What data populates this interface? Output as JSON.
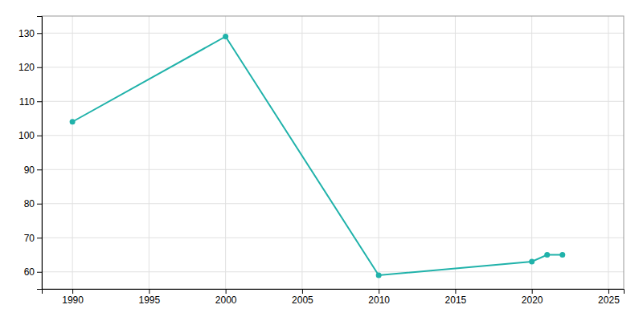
{
  "chart_data": {
    "type": "line",
    "x": [
      1990,
      2000,
      2010,
      2020,
      2021,
      2022
    ],
    "values": [
      104,
      129,
      59,
      63,
      65,
      65
    ],
    "color": "#20B2AA",
    "marker": "circle",
    "xlim": [
      1988,
      2026
    ],
    "ylim": [
      55,
      135
    ],
    "xticks": [
      1990,
      1995,
      2000,
      2005,
      2010,
      2015,
      2020,
      2025
    ],
    "yticks": [
      60,
      70,
      80,
      90,
      100,
      110,
      120,
      130
    ],
    "grid": true
  }
}
